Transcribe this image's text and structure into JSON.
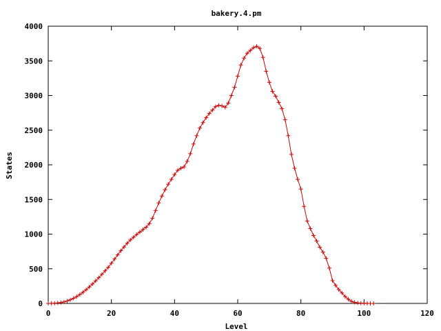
{
  "chart_data": {
    "type": "line",
    "title": "bakery.4.pm",
    "xlabel": "Level",
    "ylabel": "States",
    "xlim": [
      0,
      120
    ],
    "ylim": [
      0,
      4000
    ],
    "xticks": [
      "0",
      "20",
      "40",
      "60",
      "80",
      "100",
      "120"
    ],
    "yticks": [
      "0",
      "500",
      "1000",
      "1500",
      "2000",
      "2500",
      "3000",
      "3500",
      "4000"
    ],
    "grid": false,
    "legend": "none",
    "series": [
      {
        "color": "#cc0000",
        "marker": "plus",
        "x": [
          0,
          1,
          2,
          3,
          4,
          5,
          6,
          7,
          8,
          9,
          10,
          11,
          12,
          13,
          14,
          15,
          16,
          17,
          18,
          19,
          20,
          21,
          22,
          23,
          24,
          25,
          26,
          27,
          28,
          29,
          30,
          31,
          32,
          33,
          34,
          35,
          36,
          37,
          38,
          39,
          40,
          41,
          42,
          43,
          44,
          45,
          46,
          47,
          48,
          49,
          50,
          51,
          52,
          53,
          54,
          55,
          56,
          57,
          58,
          59,
          60,
          61,
          62,
          63,
          64,
          65,
          66,
          67,
          68,
          69,
          70,
          71,
          72,
          73,
          74,
          75,
          76,
          77,
          78,
          79,
          80,
          81,
          82,
          83,
          84,
          85,
          86,
          87,
          88,
          89,
          90,
          91,
          92,
          93,
          94,
          95,
          96,
          97,
          98,
          99,
          100,
          101,
          102,
          103
        ],
        "y": [
          0,
          1,
          3,
          7,
          13,
          22,
          35,
          52,
          73,
          98,
          128,
          160,
          198,
          238,
          280,
          325,
          372,
          420,
          470,
          520,
          580,
          640,
          700,
          760,
          815,
          868,
          915,
          955,
          995,
          1030,
          1065,
          1100,
          1150,
          1230,
          1340,
          1450,
          1550,
          1640,
          1720,
          1790,
          1860,
          1920,
          1950,
          1970,
          2050,
          2160,
          2300,
          2420,
          2530,
          2610,
          2680,
          2740,
          2790,
          2840,
          2860,
          2850,
          2830,
          2890,
          3000,
          3120,
          3280,
          3440,
          3540,
          3610,
          3650,
          3690,
          3710,
          3680,
          3550,
          3350,
          3190,
          3060,
          2990,
          2900,
          2810,
          2650,
          2420,
          2150,
          1950,
          1790,
          1650,
          1400,
          1190,
          1080,
          980,
          900,
          810,
          740,
          650,
          510,
          330,
          260,
          200,
          150,
          100,
          60,
          30,
          15,
          8,
          4,
          2,
          1,
          0,
          0
        ]
      }
    ]
  }
}
